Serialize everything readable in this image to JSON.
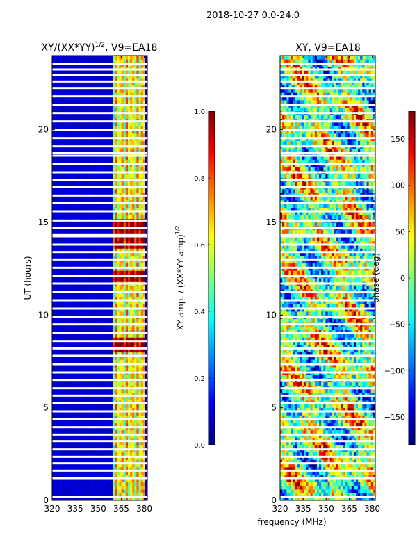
{
  "suptitle": "2018-10-27 0.0-24.0",
  "colors": {
    "masked_row": "#ffffff",
    "frame": "#000000",
    "jet": [
      "#00007f",
      "#0000ff",
      "#007fff",
      "#00ffff",
      "#7fff7f",
      "#ffff00",
      "#ff7f00",
      "#ff0000",
      "#7f0000"
    ]
  },
  "chart_data": [
    {
      "type": "heatmap",
      "title": "XY/(XX*YY)",
      "title_sup": "1/2",
      "title_suffix": ", V9=EA18",
      "xlabel": "",
      "ylabel": "UT (hours)",
      "xlim": [
        320,
        382
      ],
      "ylim": [
        0,
        24
      ],
      "x_ticks": [
        320,
        335,
        350,
        365,
        380
      ],
      "x_tick_labels": [
        "320",
        "335",
        "350",
        "365",
        "380"
      ],
      "y_ticks": [
        0,
        5,
        10,
        15,
        20
      ],
      "y_tick_labels": [
        "0",
        "5",
        "10",
        "15",
        "20"
      ],
      "band_of_interest_mhz": [
        360,
        380
      ],
      "colorbar": {
        "label": "XY amp. / (XX*YY amp)",
        "label_sup": "1/2",
        "range": [
          0.0,
          1.0
        ],
        "ticks": [
          0.0,
          0.2,
          0.4,
          0.6,
          0.8,
          1.0
        ],
        "tick_labels": [
          "0.0",
          "0.2",
          "0.4",
          "0.6",
          "0.8",
          "1.0"
        ]
      }
    },
    {
      "type": "heatmap",
      "title": "XY, V9=EA18",
      "xlabel": "frequency (MHz)",
      "ylabel": "",
      "xlim": [
        320,
        382
      ],
      "ylim": [
        0,
        24
      ],
      "x_ticks": [
        320,
        335,
        350,
        365,
        380
      ],
      "x_tick_labels": [
        "320",
        "335",
        "350",
        "365",
        "380"
      ],
      "y_ticks": [
        0,
        5,
        10,
        15,
        20
      ],
      "y_tick_labels": [
        "0",
        "5",
        "10",
        "15",
        "20"
      ],
      "colorbar": {
        "label": "phase (deg)",
        "range": [
          -180,
          180
        ],
        "ticks": [
          -150,
          -100,
          -50,
          0,
          50,
          100,
          150
        ],
        "tick_labels": [
          "−150",
          "−100",
          "−50",
          "0",
          "50",
          "100",
          "150"
        ]
      }
    }
  ],
  "masked_time_rows_hours": [
    0.2,
    1.2,
    1.6,
    2.0,
    2.35,
    2.75,
    3.2,
    3.55,
    3.95,
    4.4,
    4.8,
    5.25,
    5.65,
    6.05,
    6.5,
    6.9,
    7.35,
    7.8,
    8.2,
    8.6,
    9.05,
    9.5,
    9.9,
    10.35,
    10.8,
    11.25,
    11.7,
    12.1,
    12.55,
    13.0,
    13.4,
    13.8,
    14.25,
    14.35,
    14.7,
    15.1,
    15.6,
    16.05,
    16.45,
    16.9,
    17.3,
    17.7,
    18.15,
    18.6,
    18.75,
    19.1,
    19.55,
    20.0,
    20.45,
    20.9,
    21.35,
    21.8,
    22.25,
    22.6,
    22.95,
    23.25,
    23.55
  ]
}
